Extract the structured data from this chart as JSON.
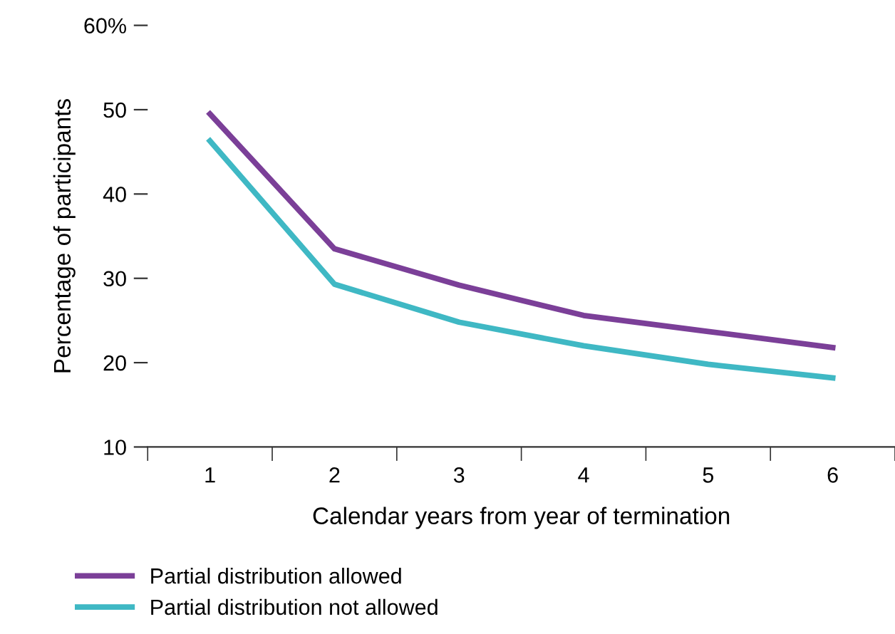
{
  "chart_data": {
    "type": "line",
    "xlabel": "Calendar years from year of termination",
    "ylabel": "Percentage of participants",
    "categories": [
      "1",
      "2",
      "3",
      "4",
      "5",
      "6"
    ],
    "series": [
      {
        "name": "Partial distribution allowed",
        "color": "#7b3f98",
        "values": [
          49.5,
          33.5,
          29.2,
          25.6,
          23.7,
          21.8
        ]
      },
      {
        "name": "Partial distribution not allowed",
        "color": "#3fb8c4",
        "values": [
          46.3,
          29.3,
          24.8,
          22.0,
          19.8,
          18.2
        ]
      }
    ],
    "ylim": [
      10,
      60
    ],
    "yticks": [
      10,
      20,
      30,
      40,
      50,
      {
        "value": 60,
        "label": "60%"
      }
    ],
    "grid": false,
    "legend": "bottom",
    "marker": "none",
    "line_style": "solid"
  }
}
